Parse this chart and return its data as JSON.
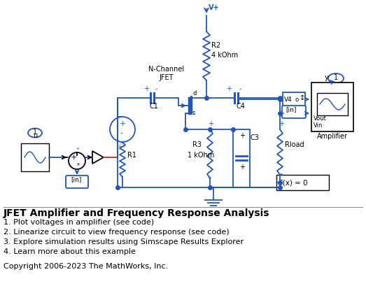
{
  "title": "JFET Amplifier and Frequency Response Analysis",
  "bullet_points": [
    "1. Plot voltages in amplifier (see code)",
    "2. Linearize circuit to view frequency response (see code)",
    "3. Explore simulation results using Simscape Results Explorer",
    "4. Learn more about this example"
  ],
  "copyright": "Copyright 2006-2023 The MathWorks, Inc.",
  "bg_color": "#ffffff",
  "blue": "#3355aa",
  "text_color": "#000000",
  "title_fontsize": 10,
  "body_fontsize": 8,
  "circuit_blue": "#2255bb"
}
